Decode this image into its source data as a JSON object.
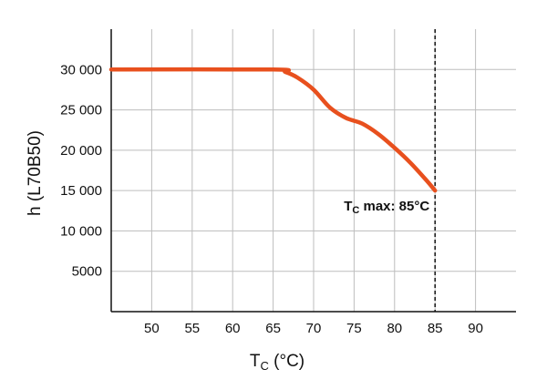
{
  "chart_data": {
    "type": "line",
    "xlabel": "T",
    "xlabel_sub": "C",
    "xlabel_unit": " (°C)",
    "ylabel": "h (L70B50)",
    "xlim": [
      45,
      95
    ],
    "ylim": [
      0,
      35000
    ],
    "xticks": [
      50,
      55,
      60,
      65,
      70,
      75,
      80,
      85,
      90
    ],
    "xtick_labels": [
      "50",
      "55",
      "60",
      "65",
      "70",
      "75",
      "80",
      "85",
      "90"
    ],
    "yticks": [
      5000,
      10000,
      15000,
      20000,
      25000,
      30000
    ],
    "ytick_labels": [
      "5000",
      "10 000",
      "15 000",
      "20 000",
      "25 000",
      "30 000"
    ],
    "grid": true,
    "series": [
      {
        "color": "#e8501e",
        "x": [
          45,
          65,
          66.5,
          68,
          70,
          72,
          74,
          76,
          78,
          80,
          82,
          84,
          85
        ],
        "y": [
          30000,
          30000,
          29700,
          29000,
          27500,
          25300,
          24000,
          23300,
          22000,
          20300,
          18400,
          16200,
          15000
        ]
      }
    ],
    "reference_line": {
      "x": 85,
      "style": "dashed",
      "color": "#111111"
    },
    "annotation": {
      "text_main": "T",
      "text_sub": "C",
      "text_rest": " max: 85°C",
      "x": 85,
      "y": 15000
    }
  }
}
